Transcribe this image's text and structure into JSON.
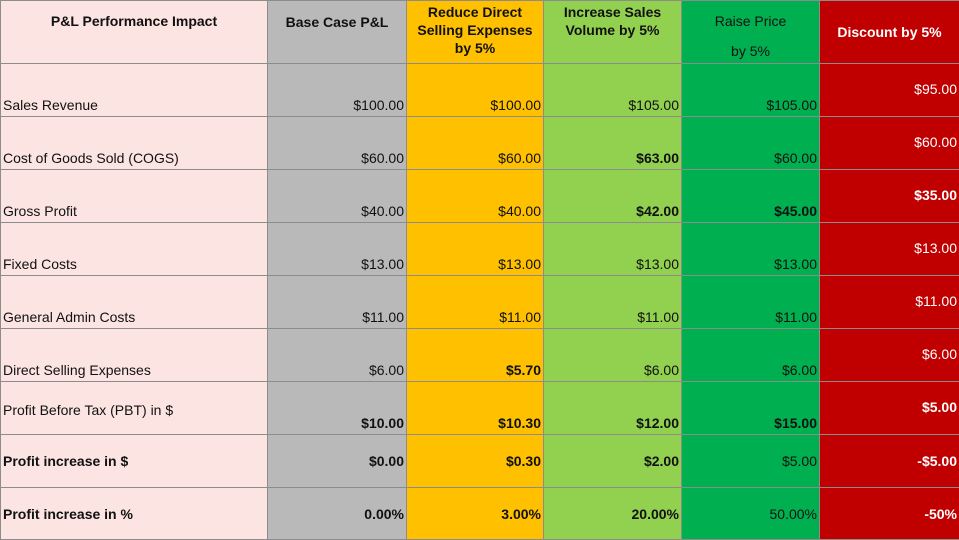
{
  "headers": {
    "label": "P&L Performance Impact",
    "base": "Base Case P&L",
    "reduce": "Reduce Direct Selling Expenses by 5%",
    "increase": "Increase Sales Volume by 5%",
    "raise_main": "Raise Price",
    "raise_sub": "by 5%",
    "discount": "Discount by 5%"
  },
  "rows": [
    {
      "label": "Sales Revenue",
      "base": "$100.00",
      "reduce": "$100.00",
      "increase": "$105.00",
      "raise": "$105.00",
      "discount": "$95.00"
    },
    {
      "label": "Cost of Goods Sold (COGS)",
      "base": "$60.00",
      "reduce": "$60.00",
      "increase": "$63.00",
      "raise": "$60.00",
      "discount": "$60.00"
    },
    {
      "label": "Gross Profit",
      "base": "$40.00",
      "reduce": "$40.00",
      "increase": "$42.00",
      "raise": "$45.00",
      "discount": "$35.00"
    },
    {
      "label": "Fixed Costs",
      "base": "$13.00",
      "reduce": "$13.00",
      "increase": "$13.00",
      "raise": "$13.00",
      "discount": "$13.00"
    },
    {
      "label": "General Admin Costs",
      "base": "$11.00",
      "reduce": "$11.00",
      "increase": "$11.00",
      "raise": "$11.00",
      "discount": "$11.00"
    },
    {
      "label": "Direct Selling Expenses",
      "base": "$6.00",
      "reduce": "$5.70",
      "increase": "$6.00",
      "raise": "$6.00",
      "discount": "$6.00"
    },
    {
      "label": "Profit Before Tax (PBT) in $",
      "base": "$10.00",
      "reduce": "$10.30",
      "increase": "$12.00",
      "raise": "$15.00",
      "discount": "$5.00"
    },
    {
      "label": "Profit increase in $",
      "base": "$0.00",
      "reduce": "$0.30",
      "increase": "$2.00",
      "raise": "$5.00",
      "discount": "-$5.00"
    },
    {
      "label": "Profit increase in %",
      "base": "0.00%",
      "reduce": "3.00%",
      "increase": "20.00%",
      "raise": "50.00%",
      "discount": "-50%"
    }
  ],
  "colors": {
    "label_bg": "#fbe4e2",
    "base_bg": "#b9b9b9",
    "reduce_bg": "#ffc000",
    "increase_bg": "#92d050",
    "raise_bg": "#00b050",
    "discount_bg": "#c00000"
  }
}
